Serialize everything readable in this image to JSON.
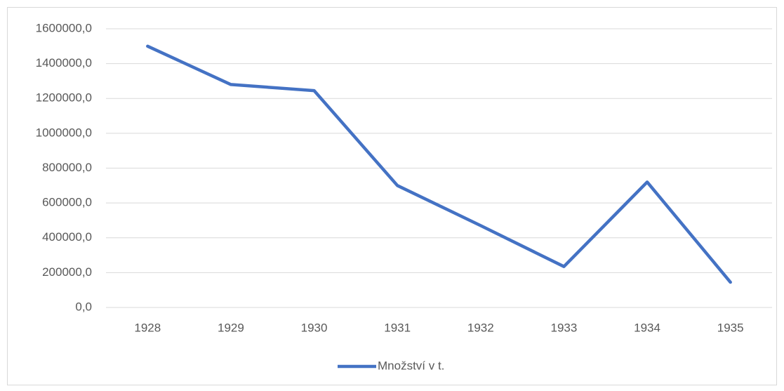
{
  "chart_data": {
    "type": "line",
    "categories": [
      "1928",
      "1929",
      "1930",
      "1931",
      "1932",
      "1933",
      "1934",
      "1935"
    ],
    "series": [
      {
        "name": "Množství v t.",
        "color": "#4472c4",
        "values": [
          1500000,
          1280000,
          1245000,
          700000,
          470000,
          235000,
          720000,
          145000
        ]
      }
    ],
    "ylim": [
      0,
      1600000
    ],
    "yticks": [
      {
        "value": 0,
        "label": "0,0"
      },
      {
        "value": 200000,
        "label": "200000,0"
      },
      {
        "value": 400000,
        "label": "400000,0"
      },
      {
        "value": 600000,
        "label": "600000,0"
      },
      {
        "value": 800000,
        "label": "800000,0"
      },
      {
        "value": 1000000,
        "label": "1000000,0"
      },
      {
        "value": 1200000,
        "label": "1200000,0"
      },
      {
        "value": 1400000,
        "label": "1400000,0"
      },
      {
        "value": 1600000,
        "label": "1600000,0"
      }
    ],
    "grid": true,
    "legend": "bottom"
  }
}
